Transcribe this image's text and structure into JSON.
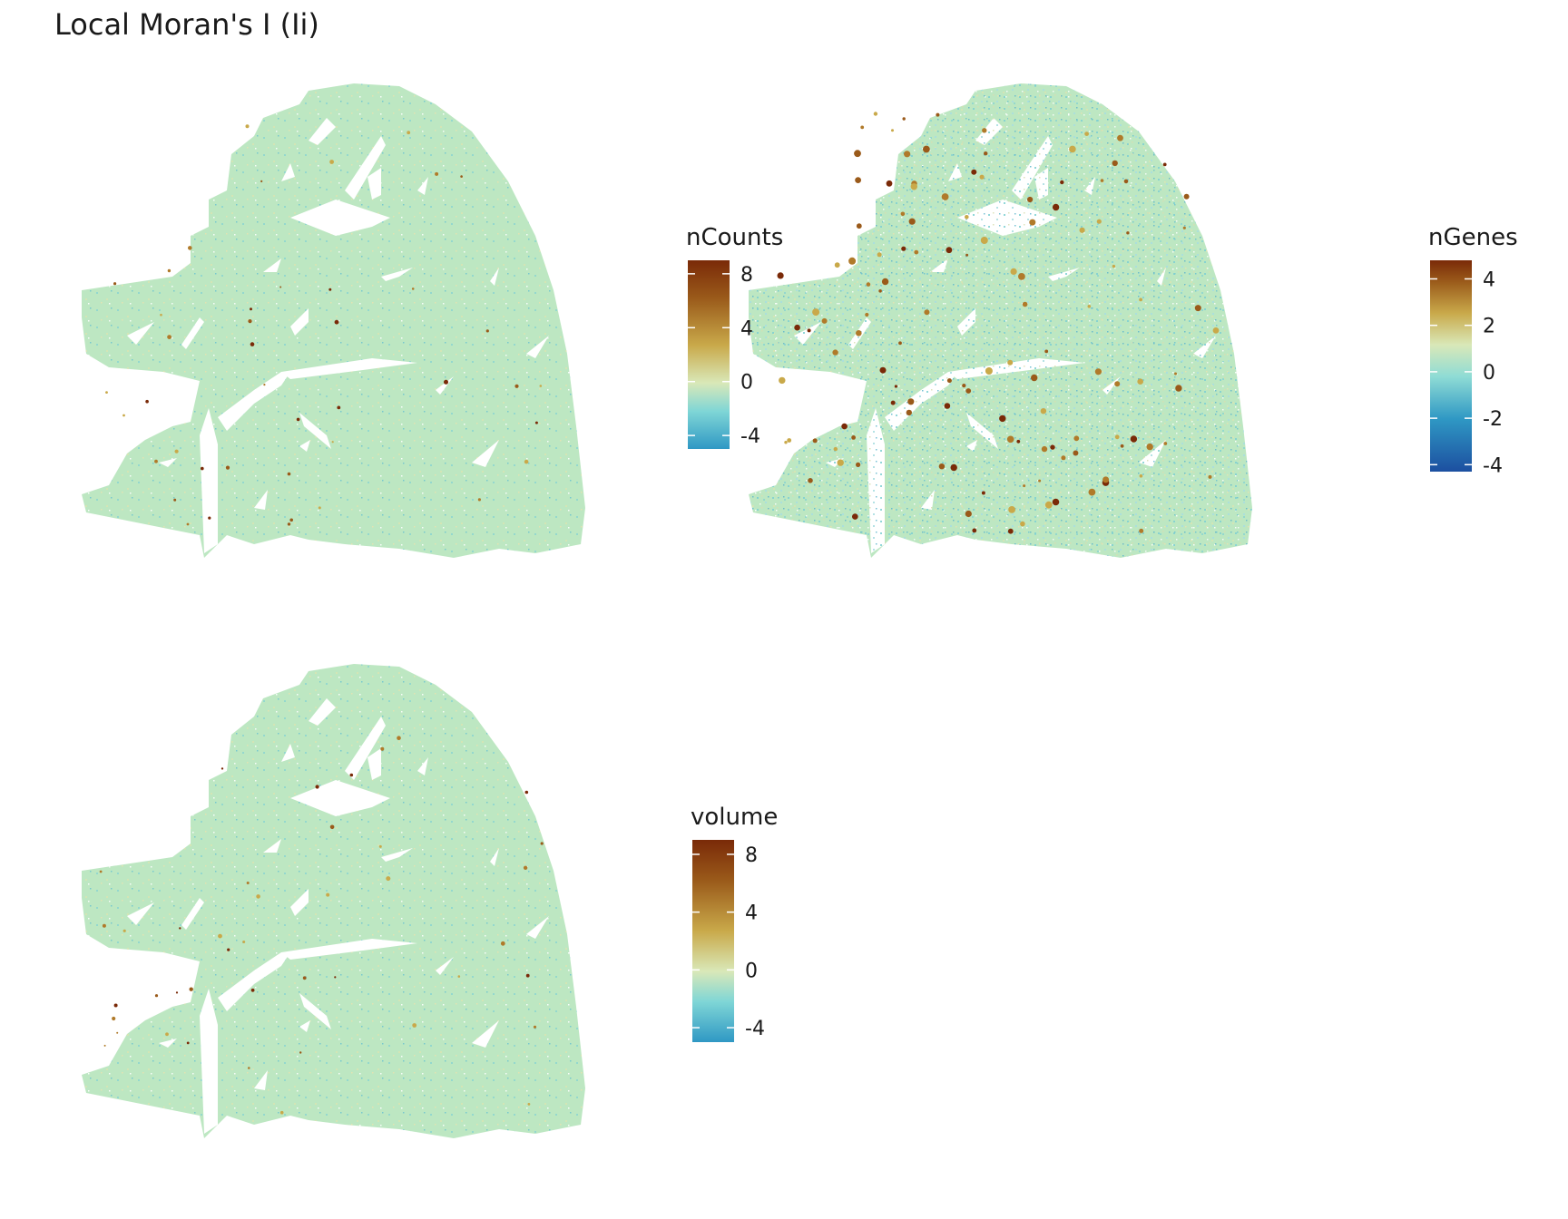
{
  "title": "Local Moran's I (Ii)",
  "colors": {
    "tissue_base": "#bde7c2",
    "background": "#ffffff",
    "scale": [
      "#1c4fa0",
      "#2f98c4",
      "#8fdcd5",
      "#d9e8b8",
      "#c9a94a",
      "#9a5a1a",
      "#7a2a08"
    ]
  },
  "chart_data": [
    {
      "type": "heatmap",
      "panel": "top-left",
      "legend_title": "nCounts",
      "legend_ticks": [
        "8",
        "4",
        "0",
        "-4"
      ],
      "legend_tick_values": [
        8,
        4,
        0,
        -4
      ],
      "range": [
        -5,
        9
      ],
      "hotspot_density": "low"
    },
    {
      "type": "heatmap",
      "panel": "top-right",
      "legend_title": "nGenes",
      "legend_ticks": [
        "4",
        "2",
        "0",
        "-2",
        "-4"
      ],
      "legend_tick_values": [
        4,
        2,
        0,
        -2,
        -4
      ],
      "range": [
        -4.3,
        4.8
      ],
      "hotspot_density": "high"
    },
    {
      "type": "heatmap",
      "panel": "bottom-left",
      "legend_title": "volume",
      "legend_ticks": [
        "8",
        "4",
        "0",
        "-4"
      ],
      "legend_tick_values": [
        8,
        4,
        0,
        -4
      ],
      "range": [
        -5,
        9
      ],
      "hotspot_density": "low"
    }
  ]
}
